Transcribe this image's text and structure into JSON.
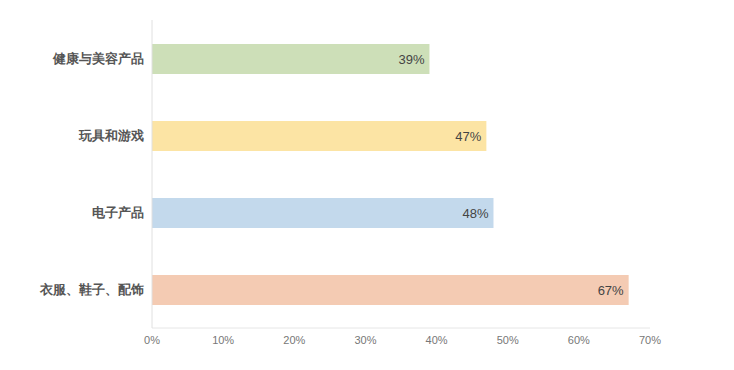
{
  "chart_data": {
    "type": "bar",
    "orientation": "horizontal",
    "categories": [
      "健康与美容产品",
      "玩具和游戏",
      "电子产品",
      "衣服、鞋子、配饰"
    ],
    "values": [
      39,
      47,
      48,
      67
    ],
    "value_labels": [
      "39%",
      "47%",
      "48%",
      "67%"
    ],
    "data_labels": true,
    "colors": [
      "#cddfb8",
      "#fce4a4",
      "#c3d9ec",
      "#f4cbb3"
    ],
    "xlim": [
      0,
      70
    ],
    "xticks": [
      {
        "value": 0,
        "label": "0%"
      },
      {
        "value": 10,
        "label": "10%"
      },
      {
        "value": 20,
        "label": "20%"
      },
      {
        "value": 30,
        "label": "30%"
      },
      {
        "value": 40,
        "label": "40%"
      },
      {
        "value": 50,
        "label": "50%"
      },
      {
        "value": 60,
        "label": "60%"
      },
      {
        "value": 70,
        "label": "70%"
      }
    ],
    "grid": false
  }
}
